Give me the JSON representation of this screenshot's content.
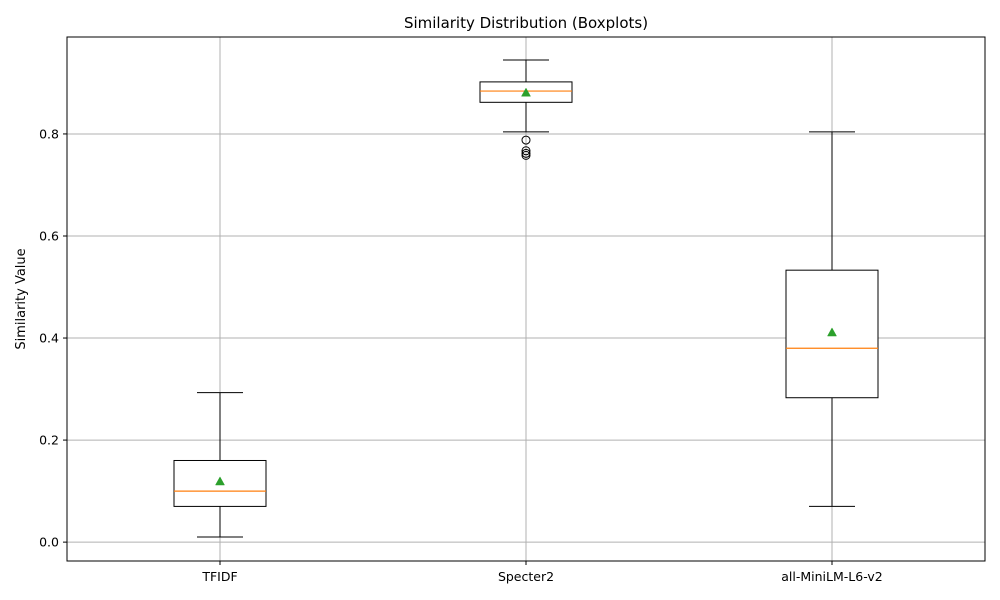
{
  "chart_data": {
    "type": "boxplot",
    "title": "Similarity Distribution (Boxplots)",
    "xlabel": "",
    "ylabel": "Similarity Value",
    "ylim": [
      -0.037,
      0.99
    ],
    "yticks": [
      0.0,
      0.2,
      0.4,
      0.6,
      0.8
    ],
    "ytick_labels": [
      "0.0",
      "0.2",
      "0.4",
      "0.6",
      "0.8"
    ],
    "grid": true,
    "categories": [
      "TFIDF",
      "Specter2",
      "all-MiniLM-L6-v2"
    ],
    "boxes": [
      {
        "category": "TFIDF",
        "whisker_low": 0.01,
        "q1": 0.07,
        "median": 0.1,
        "q3": 0.16,
        "whisker_high": 0.293,
        "mean": 0.119,
        "outliers": []
      },
      {
        "category": "Specter2",
        "whisker_low": 0.804,
        "q1": 0.862,
        "median": 0.884,
        "q3": 0.902,
        "whisker_high": 0.945,
        "mean": 0.881,
        "outliers": [
          0.788,
          0.767,
          0.762,
          0.758
        ]
      },
      {
        "category": "all-MiniLM-L6-v2",
        "whisker_low": 0.07,
        "q1": 0.283,
        "median": 0.38,
        "q3": 0.533,
        "whisker_high": 0.804,
        "mean": 0.411,
        "outliers": []
      }
    ],
    "colors": {
      "box": "#000000",
      "median": "#ff7f0e",
      "mean": "#2ca02c",
      "grid": "#b0b0b0",
      "outlier": "#000000"
    }
  }
}
